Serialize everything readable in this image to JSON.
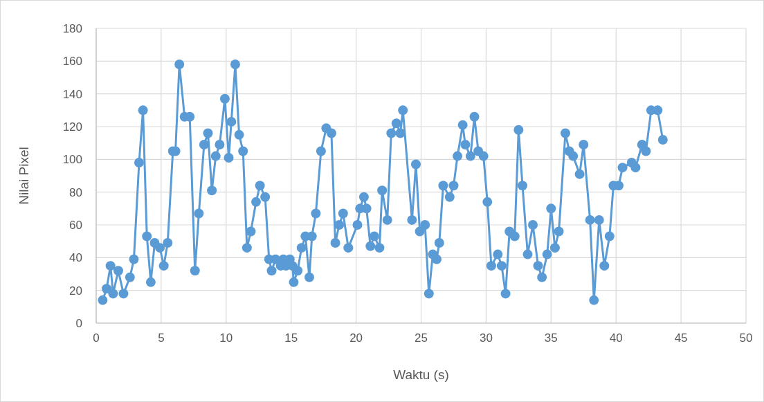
{
  "chart_data": {
    "type": "line",
    "xlabel": "Waktu (s)",
    "ylabel": "Nilai Pixel",
    "xlim": [
      0,
      50
    ],
    "xticks": [
      0,
      5,
      10,
      15,
      20,
      25,
      30,
      35,
      40,
      45,
      50
    ],
    "ylim": [
      0,
      180
    ],
    "yticks": [
      0,
      20,
      40,
      60,
      80,
      100,
      120,
      140,
      160,
      180
    ],
    "grid": true,
    "marker": "circle",
    "line_style": "solid",
    "series": [
      {
        "color": "#5b9bd5",
        "x": [
          0.5,
          0.8,
          1.1,
          1.3,
          1.7,
          2.1,
          2.6,
          2.9,
          3.3,
          3.6,
          3.9,
          4.2,
          4.5,
          4.9,
          5.2,
          5.5,
          5.9,
          6.1,
          6.4,
          6.8,
          7.2,
          7.6,
          7.9,
          8.3,
          8.6,
          8.9,
          9.2,
          9.5,
          9.9,
          10.2,
          10.4,
          10.7,
          11.0,
          11.3,
          11.6,
          11.9,
          12.3,
          12.6,
          13.0,
          13.3,
          13.5,
          13.8,
          14.2,
          14.4,
          14.6,
          14.9,
          15.1,
          15.2,
          15.5,
          15.8,
          16.1,
          16.4,
          16.6,
          16.9,
          17.3,
          17.7,
          18.1,
          18.4,
          18.7,
          19.0,
          19.4,
          20.1,
          20.3,
          20.6,
          20.8,
          21.1,
          21.4,
          21.8,
          22.0,
          22.4,
          22.7,
          23.1,
          23.4,
          23.6,
          24.3,
          24.6,
          24.9,
          25.3,
          25.6,
          25.9,
          26.2,
          26.4,
          26.7,
          27.2,
          27.5,
          27.8,
          28.2,
          28.4,
          28.8,
          29.1,
          29.4,
          29.8,
          30.1,
          30.4,
          30.9,
          31.2,
          31.5,
          31.8,
          32.2,
          32.5,
          32.8,
          33.2,
          33.6,
          34.0,
          34.3,
          34.7,
          35.0,
          35.3,
          35.6,
          36.1,
          36.4,
          36.7,
          37.2,
          37.5,
          38.0,
          38.3,
          38.7,
          39.1,
          39.5,
          39.8,
          40.2,
          40.5,
          41.2,
          41.5,
          42.0,
          42.3,
          42.7,
          43.2,
          43.6
        ],
        "values": [
          14,
          21,
          35,
          18,
          32,
          18,
          28,
          39,
          98,
          130,
          53,
          25,
          49,
          46,
          35,
          49,
          105,
          105,
          158,
          126,
          126,
          32,
          67,
          109,
          116,
          81,
          102,
          109,
          137,
          101,
          123,
          158,
          115,
          105,
          46,
          56,
          74,
          84,
          77,
          39,
          32,
          39,
          35,
          39,
          35,
          39,
          35,
          25,
          32,
          46,
          53,
          28,
          53,
          67,
          105,
          119,
          116,
          49,
          60,
          67,
          46,
          60,
          70,
          77,
          70,
          47,
          53,
          46,
          81,
          63,
          116,
          122,
          116,
          130,
          63,
          97,
          56,
          60,
          18,
          42,
          39,
          49,
          84,
          77,
          84,
          102,
          121,
          109,
          102,
          126,
          105,
          102,
          74,
          35,
          42,
          35,
          18,
          56,
          53,
          118,
          84,
          42,
          60,
          35,
          28,
          42,
          70,
          46,
          56,
          116,
          105,
          102,
          91,
          109,
          63,
          14,
          63,
          35,
          53,
          84,
          84,
          95,
          98,
          95,
          109,
          105,
          130,
          130,
          112
        ]
      }
    ]
  }
}
